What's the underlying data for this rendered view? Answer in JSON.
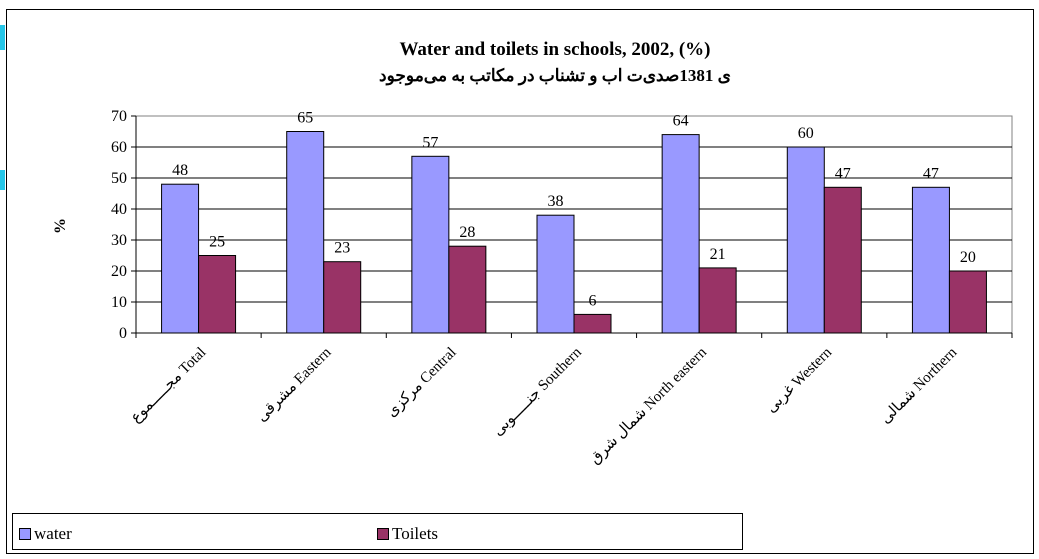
{
  "chart_data": {
    "type": "bar",
    "title": "Water and toilets in schools, 2002, (%)",
    "subtitle": "ی 1381صدی‌ت اب و تشناب در مکاتب به می‌موجود",
    "ylabel": "%",
    "xlabel": "",
    "ylim": [
      0,
      70
    ],
    "yticks": [
      "0",
      "10",
      "20",
      "30",
      "40",
      "50",
      "60",
      "70"
    ],
    "grid": true,
    "legend_position": "bottom-left",
    "categories": [
      "مجـــــموع  Total",
      "مشرقی Eastern",
      "مرکزی Central",
      "جنـــــوبی Southern",
      "شمال شرق North eastern",
      "غربی  Western",
      "شمالی Northern"
    ],
    "series": [
      {
        "name": "water",
        "color": "#9999ff",
        "values": [
          48,
          65,
          57,
          38,
          64,
          60,
          47
        ]
      },
      {
        "name": "Toilets",
        "color": "#993366",
        "values": [
          25,
          23,
          28,
          6,
          21,
          47,
          20
        ]
      }
    ]
  }
}
